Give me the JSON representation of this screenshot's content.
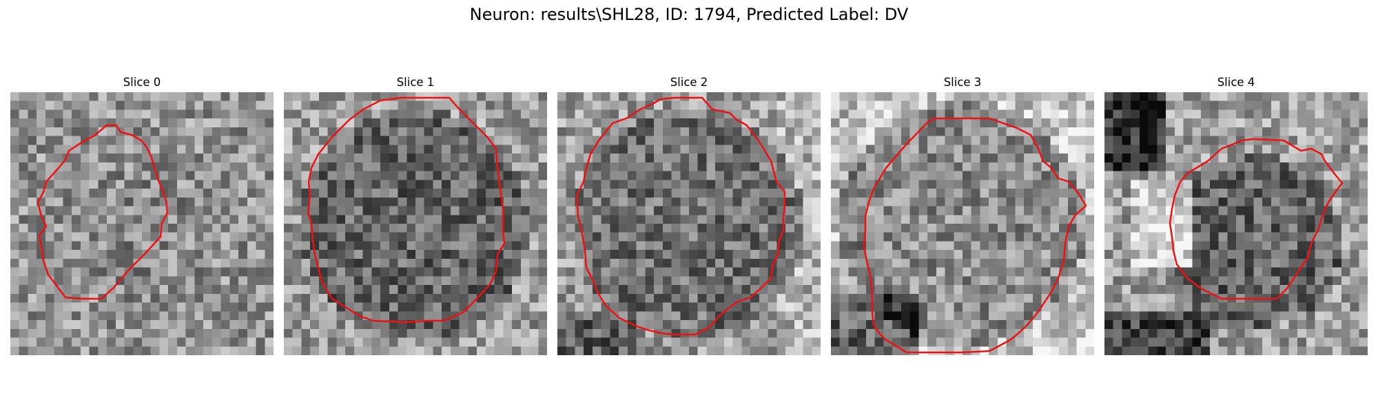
{
  "figure": {
    "title": "Neuron: results\\SHL28, ID: 1794, Predicted Label: DV"
  },
  "contour_color": "#ee1111",
  "panels": [
    {
      "title": "Slice 0"
    },
    {
      "title": "Slice 1"
    },
    {
      "title": "Slice 2"
    },
    {
      "title": "Slice 3"
    },
    {
      "title": "Slice 4"
    }
  ]
}
